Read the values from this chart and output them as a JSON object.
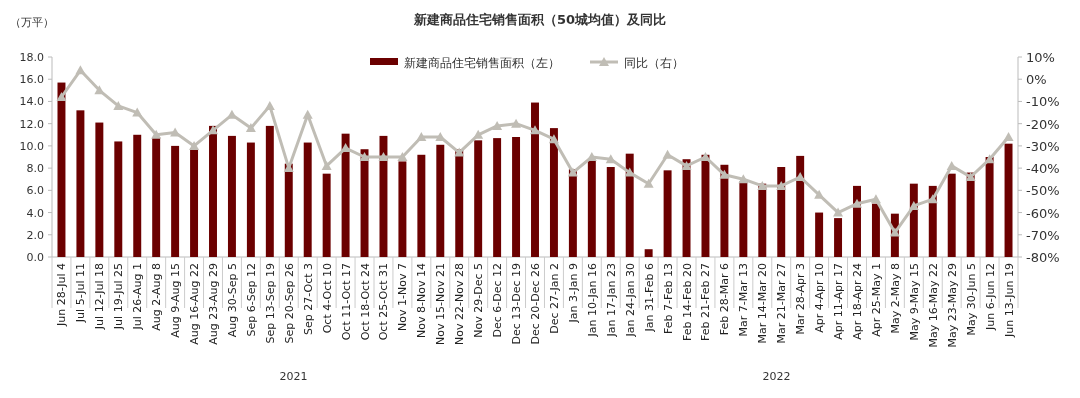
{
  "chart_data": {
    "type": "bar",
    "title": "新建商品住宅销售面积（50城均值）及同比",
    "ylabel": "（万平）",
    "categories": [
      "Jun 28-Jul 4",
      "Jul 5-Jul 11",
      "Jul 12-Jul 18",
      "Jul 19-Jul 25",
      "Jul 26-Aug 1",
      "Aug 2-Aug 8",
      "Aug 9-Aug 15",
      "Aug 16-Aug 22",
      "Aug 23-Aug 29",
      "Aug 30-Sep 5",
      "Sep 6-Sep 12",
      "Sep 13-Sep 19",
      "Sep 20-Sep 26",
      "Sep 27-Oct 3",
      "Oct 4-Oct 10",
      "Oct 11-Oct 17",
      "Oct 18-Oct 24",
      "Oct 25-Oct 31",
      "Nov 1-Nov 7",
      "Nov 8-Nov 14",
      "Nov 15-Nov 21",
      "Nov 22-Nov 28",
      "Nov 29-Dec 5",
      "Dec 6-Dec 12",
      "Dec 13-Dec 19",
      "Dec 20-Dec 26",
      "Dec 27-Jan 2",
      "Jan 3-Jan 9",
      "Jan 10-Jan 16",
      "Jan 17-Jan 23",
      "Jan 24-Jan 30",
      "Jan 31-Feb 6",
      "Feb 7-Feb 13",
      "Feb 14-Feb 20",
      "Feb 21-Feb 27",
      "Feb 28-Mar 6",
      "Mar 7-Mar 13",
      "Mar 14-Mar 20",
      "Mar 21-Mar 27",
      "Mar 28-Apr 3",
      "Apr 4-Apr 10",
      "Apr 11-Apr 17",
      "Apr 18-Apr 24",
      "Apr 25-May 1",
      "May 2-May 8",
      "May 9-May 15",
      "May 16-May 22",
      "May 23-May 29",
      "May 30-Jun 5",
      "Jun 6-Jun 12",
      "Jun 13-Jun 19"
    ],
    "series": [
      {
        "name": "新建商品住宅销售面积（左）",
        "color": "#6b0000",
        "values": [
          15.7,
          13.2,
          12.1,
          10.4,
          11.0,
          10.8,
          10.0,
          9.8,
          11.8,
          10.9,
          10.3,
          11.8,
          8.4,
          10.3,
          7.5,
          11.1,
          9.7,
          10.9,
          8.6,
          9.2,
          10.1,
          9.7,
          10.5,
          10.7,
          10.8,
          13.9,
          11.6,
          7.9,
          8.7,
          8.1,
          9.3,
          0.7,
          7.8,
          8.8,
          9.2,
          8.3,
          6.8,
          6.6,
          8.1,
          9.1,
          4.0,
          3.5,
          6.4,
          4.8,
          3.9,
          6.6,
          6.4,
          7.5,
          7.6,
          9.0,
          10.2
        ]
      },
      {
        "name": "同比（右）",
        "type": "line",
        "axis": "y2",
        "color": "#c0bdb5",
        "values": [
          -8,
          4,
          -5,
          -12,
          -15,
          -25,
          -24,
          -30,
          -23,
          -16,
          -22,
          -12,
          -40,
          -16,
          -39,
          -31,
          -35,
          -35,
          -35,
          -26,
          -26,
          -33,
          -25,
          -21,
          -20,
          -23,
          -27,
          -42,
          -35,
          -36,
          -42,
          -47,
          -34,
          -39,
          -35,
          -43,
          -45,
          -48,
          -48,
          -44,
          -52,
          -60,
          -56,
          -54,
          -69,
          -57,
          -54,
          -39,
          -44,
          -36,
          -26
        ]
      }
    ],
    "ylim": [
      0,
      18
    ],
    "yticks": [
      {
        "value": 0,
        "label": "0.0"
      },
      {
        "value": 2,
        "label": "2.0"
      },
      {
        "value": 4,
        "label": "4.0"
      },
      {
        "value": 6,
        "label": "6.0"
      },
      {
        "value": 8,
        "label": "8.0"
      },
      {
        "value": 10,
        "label": "10.0"
      },
      {
        "value": 12,
        "label": "12.0"
      },
      {
        "value": 14,
        "label": "14.0"
      },
      {
        "value": 16,
        "label": "16.0"
      },
      {
        "value": 18,
        "label": "18.0"
      }
    ],
    "y2lim": [
      -80,
      10
    ],
    "y2ticks": [
      {
        "value": 10,
        "label": "10%"
      },
      {
        "value": 0,
        "label": "0%"
      },
      {
        "value": -10,
        "label": "-10%"
      },
      {
        "value": -20,
        "label": "-20%"
      },
      {
        "value": -30,
        "label": "-30%"
      },
      {
        "value": -40,
        "label": "-40%"
      },
      {
        "value": -50,
        "label": "-50%"
      },
      {
        "value": -60,
        "label": "-60%"
      },
      {
        "value": -70,
        "label": "-70%"
      },
      {
        "value": -80,
        "label": "-80%"
      }
    ],
    "legend": "top",
    "marker": "triangle",
    "grid": false,
    "annotations": [
      "2021",
      "2022"
    ]
  }
}
